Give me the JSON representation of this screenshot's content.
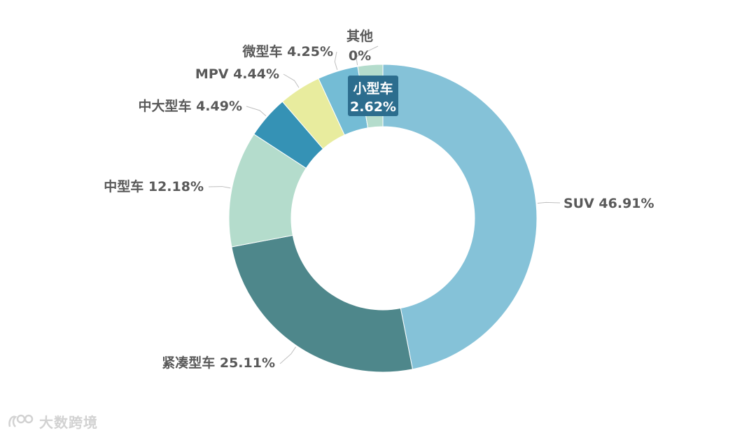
{
  "watermark": {
    "text": "大数跨境",
    "icon": "logo-icon"
  },
  "chart_data": {
    "type": "pie",
    "variant": "donut",
    "title": "",
    "unit": "%",
    "slices": [
      {
        "name": "SUV",
        "value": 46.91,
        "label": "SUV 46.91%",
        "color": "#85c2d8"
      },
      {
        "name": "紧凑型车",
        "value": 25.11,
        "label": "紧凑型车 25.11%",
        "color": "#4e878b"
      },
      {
        "name": "中型车",
        "value": 12.18,
        "label": "中型车 12.18%",
        "color": "#b4dccc"
      },
      {
        "name": "中大型车",
        "value": 4.49,
        "label": "中大型车 4.49%",
        "color": "#3592b5"
      },
      {
        "name": "MPV",
        "value": 4.44,
        "label": "MPV 4.44%",
        "color": "#e8ec9e"
      },
      {
        "name": "微型车",
        "value": 4.25,
        "label": "微型车 4.25%",
        "color": "#74bcd5"
      },
      {
        "name": "其他",
        "value": 0,
        "label_lines": [
          "其他",
          "0%"
        ],
        "color": "#cfcfcf"
      },
      {
        "name": "小型车",
        "value": 2.62,
        "label_lines": [
          "小型车",
          "2.62%"
        ],
        "color": "#b4dccc",
        "highlight": true,
        "highlight_color": "#2c6d8e"
      }
    ]
  }
}
